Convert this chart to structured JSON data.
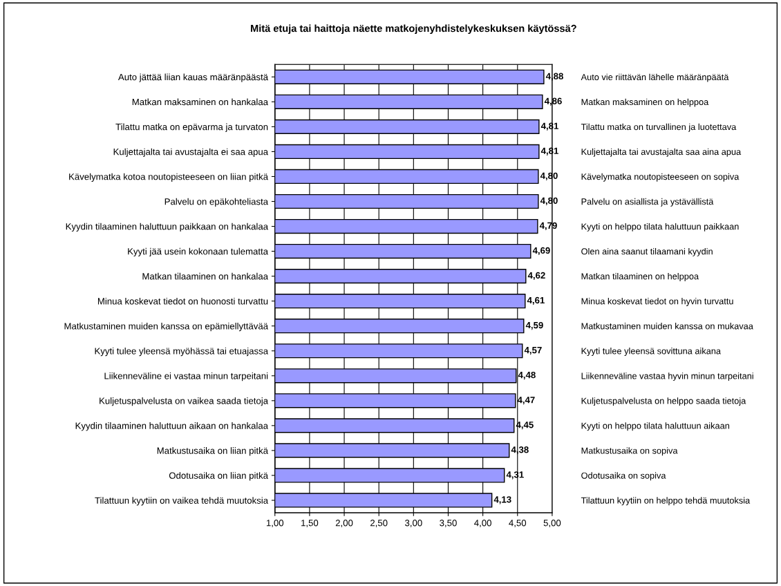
{
  "chart_data": {
    "type": "bar",
    "orientation": "horizontal",
    "title": "Mitä etuja tai haittoja näette matkojenyhdistelykeskuksen käytössä?",
    "categories": [
      "Auto jättää liian kauas määränpäästä",
      "Matkan maksaminen on hankalaa",
      "Tilattu matka on epävarma ja turvaton",
      "Kuljettajalta tai avustajalta ei saa apua",
      "Kävelymatka kotoa noutopisteeseen on liian pitkä",
      "Palvelu on epäkohteliasta",
      "Kyydin tilaaminen haluttuun paikkaan on hankalaa",
      "Kyyti jää usein kokonaan tulematta",
      "Matkan tilaaminen on hankalaa",
      "Minua koskevat tiedot on huonosti turvattu",
      "Matkustaminen muiden kanssa on epämiellyttävää",
      "Kyyti tulee yleensä myöhässä tai etuajassa",
      "Liikenneväline ei vastaa minun tarpeitani",
      "Kuljetuspalvelusta on vaikea saada tietoja",
      "Kyydin tilaaminen haluttuun aikaan on hankalaa",
      "Matkustusaika on liian pitkä",
      "Odotusaika on liian pitkä",
      "Tilattuun kyytiin on vaikea tehdä muutoksia"
    ],
    "y2_categories": [
      "Auto vie riittävän lähelle määränpäätä",
      "Matkan maksaminen on helppoa",
      "Tilattu matka on turvallinen ja luotettava",
      "Kuljettajalta tai avustajalta saa aina apua",
      "Kävelymatka noutopisteeseen on sopiva",
      "Palvelu on asiallista ja ystävällistä",
      "Kyyti on helppo tilata haluttuun paikkaan",
      "Olen aina saanut tilaamani kyydin",
      "Matkan tilaaminen on helppoa",
      "Minua koskevat tiedot on hyvin turvattu",
      "Matkustaminen muiden kanssa on mukavaa",
      "Kyyti tulee yleensä sovittuna aikana",
      "Liikenneväline vastaa hyvin minun tarpeitani",
      "Kuljetuspalvelusta on helppo saada tietoja",
      "Kyyti on helppo tilata haluttuun aikaan",
      "Matkustusaika on sopiva",
      "Odotusaika on sopiva",
      "Tilattuun kyytiin on helppo tehdä muutoksia"
    ],
    "values": [
      4.88,
      4.86,
      4.81,
      4.81,
      4.8,
      4.8,
      4.79,
      4.69,
      4.62,
      4.61,
      4.59,
      4.57,
      4.48,
      4.47,
      4.45,
      4.38,
      4.31,
      4.13
    ],
    "value_labels": [
      "4,88",
      "4,86",
      "4,81",
      "4,81",
      "4,80",
      "4,80",
      "4,79",
      "4,69",
      "4,62",
      "4,61",
      "4,59",
      "4,57",
      "4,48",
      "4,47",
      "4,45",
      "4,38",
      "4,31",
      "4,13"
    ],
    "color": "#9999ff",
    "xlim": [
      1,
      5
    ],
    "xticks": [
      {
        "value": 1,
        "label": "1,00"
      },
      {
        "value": 1.5,
        "label": "1,50"
      },
      {
        "value": 2,
        "label": "2,00"
      },
      {
        "value": 2.5,
        "label": "2,50"
      },
      {
        "value": 3,
        "label": "3,00"
      },
      {
        "value": 3.5,
        "label": "3,50"
      },
      {
        "value": 4,
        "label": "4,00"
      },
      {
        "value": 4.5,
        "label": "4,50"
      },
      {
        "value": 5,
        "label": "5,00"
      }
    ],
    "grid": "x",
    "legend": false
  }
}
